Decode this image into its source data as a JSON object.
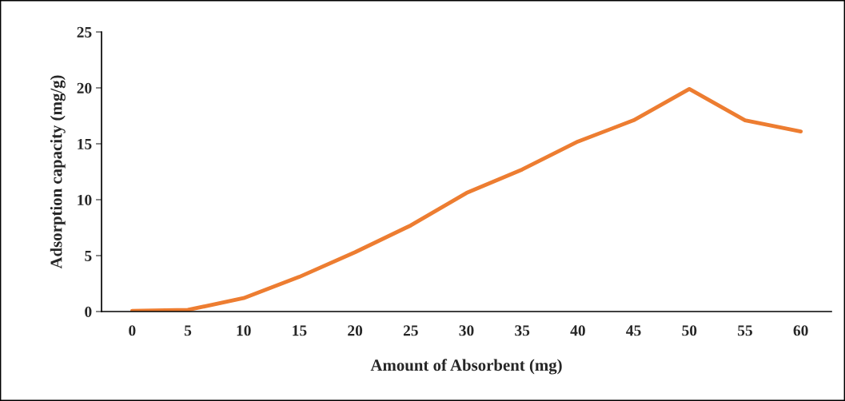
{
  "chart_data": {
    "type": "line",
    "xlabel": "Amount of Absorbent (mg)",
    "ylabel": "Adsorption capacity (mg/g)",
    "categories": [
      "0",
      "5",
      "10",
      "15",
      "20",
      "25",
      "30",
      "35",
      "40",
      "45",
      "50",
      "55",
      "60"
    ],
    "series": [
      {
        "color": "#ed7d31",
        "values": [
          0.05,
          0.15,
          1.2,
          3.1,
          5.3,
          7.7,
          10.6,
          12.7,
          15.2,
          17.1,
          19.9,
          17.1,
          16.1
        ]
      }
    ],
    "ylim": [
      0,
      25
    ],
    "yticks": [
      0,
      5,
      10,
      15,
      20,
      25
    ],
    "grid": false,
    "legend": false,
    "marker": "none",
    "line_style": "solid"
  }
}
